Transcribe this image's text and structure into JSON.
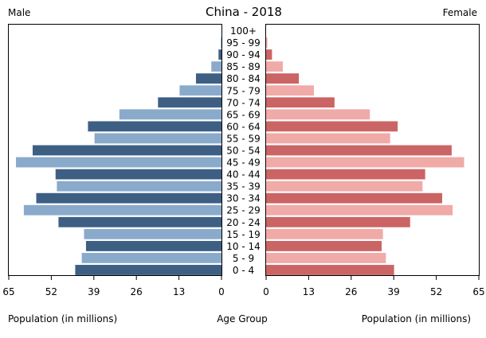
{
  "chart_data": {
    "type": "bar",
    "title": "China - 2018",
    "left_label": "Male",
    "right_label": "Female",
    "center_xlabel": "Age Group",
    "xlabel_left": "Population (in millions)",
    "xlabel_right": "Population (in millions)",
    "categories": [
      "100+",
      "95 - 99",
      "90 - 94",
      "85 - 89",
      "80 - 84",
      "75 - 79",
      "70 - 74",
      "65 - 69",
      "60 - 64",
      "55 - 59",
      "50 - 54",
      "45 - 49",
      "40 - 44",
      "35 - 39",
      "30 - 34",
      "25 - 29",
      "20 - 24",
      "15 - 19",
      "10 - 14",
      "5 - 9",
      "0 - 4"
    ],
    "series": [
      {
        "name": "Male",
        "values": [
          0.0,
          0.2,
          0.9,
          3.1,
          7.8,
          12.8,
          19.4,
          31.2,
          40.8,
          38.8,
          57.7,
          62.8,
          50.7,
          50.3,
          56.6,
          60.4,
          49.8,
          42.0,
          41.4,
          42.7,
          44.7
        ]
      },
      {
        "name": "Female",
        "values": [
          0.0,
          0.4,
          1.8,
          5.1,
          10.0,
          14.6,
          20.9,
          31.7,
          40.2,
          37.9,
          56.7,
          60.5,
          48.6,
          47.8,
          53.8,
          57.0,
          44.0,
          35.7,
          35.3,
          36.6,
          39.1
        ]
      }
    ],
    "xlim": [
      0,
      65
    ],
    "ticks": [
      "65",
      "52",
      "39",
      "26",
      "13",
      "0"
    ],
    "ticks_right": [
      "0",
      "13",
      "26",
      "39",
      "52",
      "65"
    ],
    "colors": {
      "male_dark": "#3e5f84",
      "male_light": "#8aaacb",
      "female_dark": "#cb6464",
      "female_light": "#f0aaa8"
    }
  }
}
